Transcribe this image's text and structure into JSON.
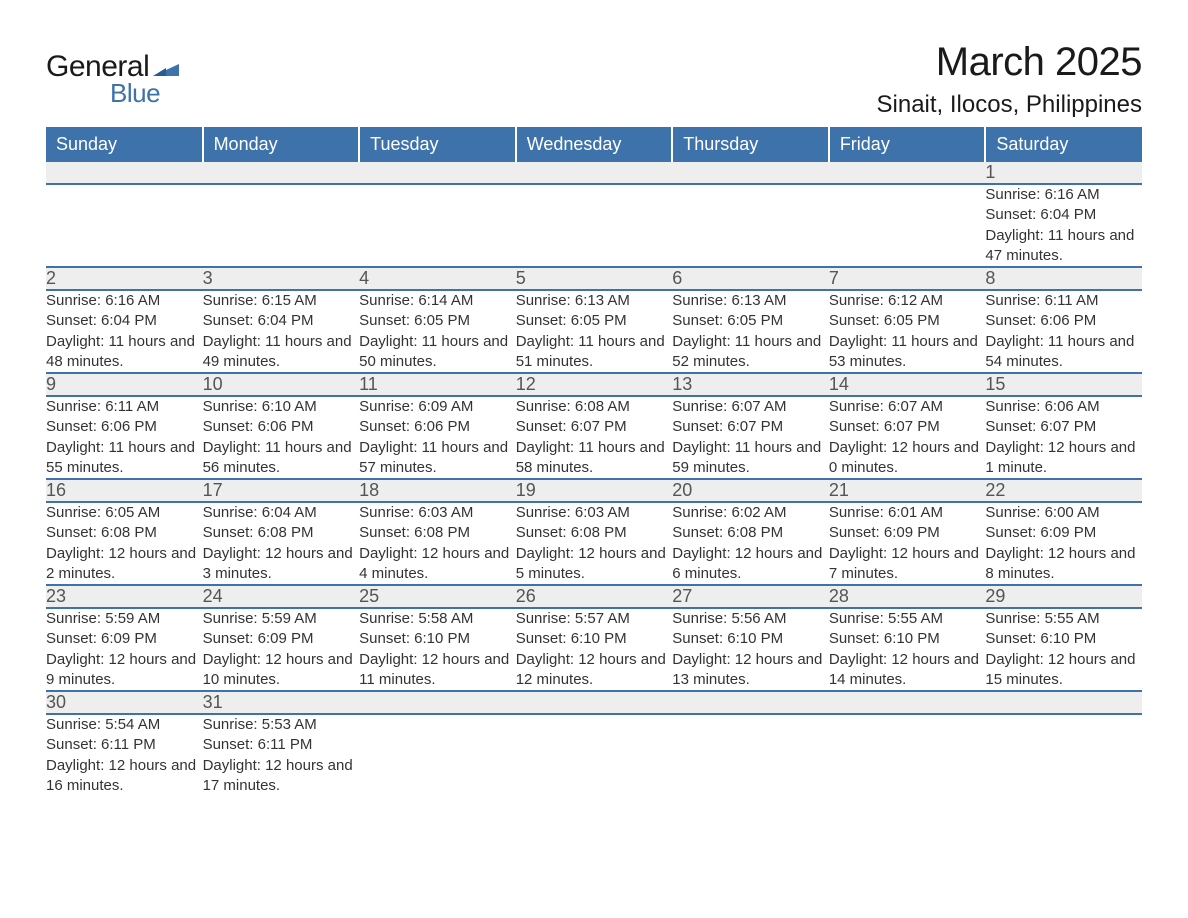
{
  "brand": {
    "name1": "General",
    "name2": "Blue",
    "flag_color": "#3d72ab"
  },
  "title": {
    "month": "March 2025",
    "location": "Sinait, Ilocos, Philippines"
  },
  "style": {
    "header_bg": "#3d72ab",
    "header_fg": "#ffffff",
    "daynum_bg": "#eeeeee",
    "daynum_fg": "#555555",
    "body_fg": "#333333",
    "border_color": "#3d72ab",
    "page_bg": "#ffffff",
    "month_fontsize": 40,
    "location_fontsize": 24,
    "weekday_fontsize": 18,
    "daynum_fontsize": 18,
    "detail_fontsize": 15
  },
  "weekdays": [
    "Sunday",
    "Monday",
    "Tuesday",
    "Wednesday",
    "Thursday",
    "Friday",
    "Saturday"
  ],
  "weeks": [
    [
      null,
      null,
      null,
      null,
      null,
      null,
      {
        "n": "1",
        "sr": "Sunrise: 6:16 AM",
        "ss": "Sunset: 6:04 PM",
        "dl": "Daylight: 11 hours and 47 minutes."
      }
    ],
    [
      {
        "n": "2",
        "sr": "Sunrise: 6:16 AM",
        "ss": "Sunset: 6:04 PM",
        "dl": "Daylight: 11 hours and 48 minutes."
      },
      {
        "n": "3",
        "sr": "Sunrise: 6:15 AM",
        "ss": "Sunset: 6:04 PM",
        "dl": "Daylight: 11 hours and 49 minutes."
      },
      {
        "n": "4",
        "sr": "Sunrise: 6:14 AM",
        "ss": "Sunset: 6:05 PM",
        "dl": "Daylight: 11 hours and 50 minutes."
      },
      {
        "n": "5",
        "sr": "Sunrise: 6:13 AM",
        "ss": "Sunset: 6:05 PM",
        "dl": "Daylight: 11 hours and 51 minutes."
      },
      {
        "n": "6",
        "sr": "Sunrise: 6:13 AM",
        "ss": "Sunset: 6:05 PM",
        "dl": "Daylight: 11 hours and 52 minutes."
      },
      {
        "n": "7",
        "sr": "Sunrise: 6:12 AM",
        "ss": "Sunset: 6:05 PM",
        "dl": "Daylight: 11 hours and 53 minutes."
      },
      {
        "n": "8",
        "sr": "Sunrise: 6:11 AM",
        "ss": "Sunset: 6:06 PM",
        "dl": "Daylight: 11 hours and 54 minutes."
      }
    ],
    [
      {
        "n": "9",
        "sr": "Sunrise: 6:11 AM",
        "ss": "Sunset: 6:06 PM",
        "dl": "Daylight: 11 hours and 55 minutes."
      },
      {
        "n": "10",
        "sr": "Sunrise: 6:10 AM",
        "ss": "Sunset: 6:06 PM",
        "dl": "Daylight: 11 hours and 56 minutes."
      },
      {
        "n": "11",
        "sr": "Sunrise: 6:09 AM",
        "ss": "Sunset: 6:06 PM",
        "dl": "Daylight: 11 hours and 57 minutes."
      },
      {
        "n": "12",
        "sr": "Sunrise: 6:08 AM",
        "ss": "Sunset: 6:07 PM",
        "dl": "Daylight: 11 hours and 58 minutes."
      },
      {
        "n": "13",
        "sr": "Sunrise: 6:07 AM",
        "ss": "Sunset: 6:07 PM",
        "dl": "Daylight: 11 hours and 59 minutes."
      },
      {
        "n": "14",
        "sr": "Sunrise: 6:07 AM",
        "ss": "Sunset: 6:07 PM",
        "dl": "Daylight: 12 hours and 0 minutes."
      },
      {
        "n": "15",
        "sr": "Sunrise: 6:06 AM",
        "ss": "Sunset: 6:07 PM",
        "dl": "Daylight: 12 hours and 1 minute."
      }
    ],
    [
      {
        "n": "16",
        "sr": "Sunrise: 6:05 AM",
        "ss": "Sunset: 6:08 PM",
        "dl": "Daylight: 12 hours and 2 minutes."
      },
      {
        "n": "17",
        "sr": "Sunrise: 6:04 AM",
        "ss": "Sunset: 6:08 PM",
        "dl": "Daylight: 12 hours and 3 minutes."
      },
      {
        "n": "18",
        "sr": "Sunrise: 6:03 AM",
        "ss": "Sunset: 6:08 PM",
        "dl": "Daylight: 12 hours and 4 minutes."
      },
      {
        "n": "19",
        "sr": "Sunrise: 6:03 AM",
        "ss": "Sunset: 6:08 PM",
        "dl": "Daylight: 12 hours and 5 minutes."
      },
      {
        "n": "20",
        "sr": "Sunrise: 6:02 AM",
        "ss": "Sunset: 6:08 PM",
        "dl": "Daylight: 12 hours and 6 minutes."
      },
      {
        "n": "21",
        "sr": "Sunrise: 6:01 AM",
        "ss": "Sunset: 6:09 PM",
        "dl": "Daylight: 12 hours and 7 minutes."
      },
      {
        "n": "22",
        "sr": "Sunrise: 6:00 AM",
        "ss": "Sunset: 6:09 PM",
        "dl": "Daylight: 12 hours and 8 minutes."
      }
    ],
    [
      {
        "n": "23",
        "sr": "Sunrise: 5:59 AM",
        "ss": "Sunset: 6:09 PM",
        "dl": "Daylight: 12 hours and 9 minutes."
      },
      {
        "n": "24",
        "sr": "Sunrise: 5:59 AM",
        "ss": "Sunset: 6:09 PM",
        "dl": "Daylight: 12 hours and 10 minutes."
      },
      {
        "n": "25",
        "sr": "Sunrise: 5:58 AM",
        "ss": "Sunset: 6:10 PM",
        "dl": "Daylight: 12 hours and 11 minutes."
      },
      {
        "n": "26",
        "sr": "Sunrise: 5:57 AM",
        "ss": "Sunset: 6:10 PM",
        "dl": "Daylight: 12 hours and 12 minutes."
      },
      {
        "n": "27",
        "sr": "Sunrise: 5:56 AM",
        "ss": "Sunset: 6:10 PM",
        "dl": "Daylight: 12 hours and 13 minutes."
      },
      {
        "n": "28",
        "sr": "Sunrise: 5:55 AM",
        "ss": "Sunset: 6:10 PM",
        "dl": "Daylight: 12 hours and 14 minutes."
      },
      {
        "n": "29",
        "sr": "Sunrise: 5:55 AM",
        "ss": "Sunset: 6:10 PM",
        "dl": "Daylight: 12 hours and 15 minutes."
      }
    ],
    [
      {
        "n": "30",
        "sr": "Sunrise: 5:54 AM",
        "ss": "Sunset: 6:11 PM",
        "dl": "Daylight: 12 hours and 16 minutes."
      },
      {
        "n": "31",
        "sr": "Sunrise: 5:53 AM",
        "ss": "Sunset: 6:11 PM",
        "dl": "Daylight: 12 hours and 17 minutes."
      },
      null,
      null,
      null,
      null,
      null
    ]
  ]
}
